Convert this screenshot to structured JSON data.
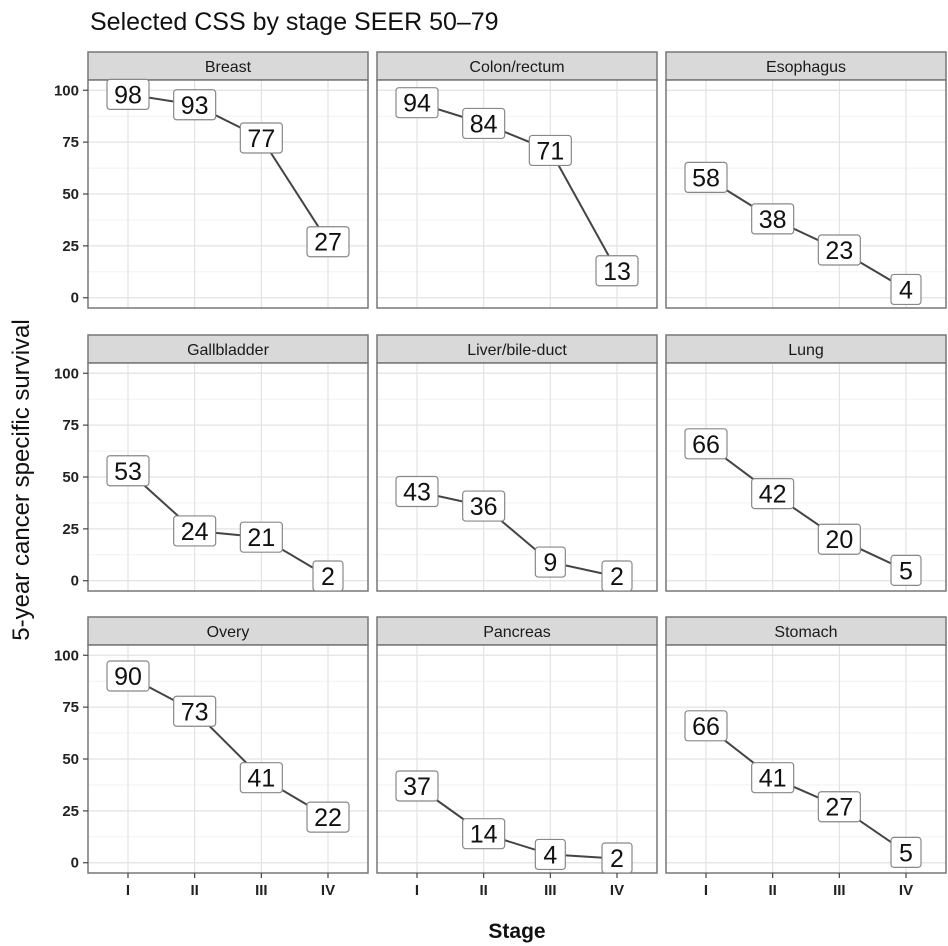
{
  "chart_data": {
    "type": "line",
    "title": "Selected CSS by stage SEER 50–79",
    "xlabel": "Stage",
    "ylabel": "5-year cancer specific survival",
    "categories": [
      "I",
      "II",
      "III",
      "IV"
    ],
    "ylim": [
      0,
      100
    ],
    "yticks": [
      0,
      25,
      50,
      75,
      100
    ],
    "grid": true,
    "panels": [
      {
        "name": "Breast",
        "values": [
          98,
          93,
          77,
          27
        ]
      },
      {
        "name": "Colon/rectum",
        "values": [
          94,
          84,
          71,
          13
        ]
      },
      {
        "name": "Esophagus",
        "values": [
          58,
          38,
          23,
          4
        ]
      },
      {
        "name": "Gallbladder",
        "values": [
          53,
          24,
          21,
          2
        ]
      },
      {
        "name": "Liver/bile-duct",
        "values": [
          43,
          36,
          9,
          2
        ]
      },
      {
        "name": "Lung",
        "values": [
          66,
          42,
          20,
          5
        ]
      },
      {
        "name": "Overy",
        "values": [
          90,
          73,
          41,
          22
        ]
      },
      {
        "name": "Pancreas",
        "values": [
          37,
          14,
          4,
          2
        ]
      },
      {
        "name": "Stomach",
        "values": [
          66,
          41,
          27,
          5
        ]
      }
    ]
  }
}
